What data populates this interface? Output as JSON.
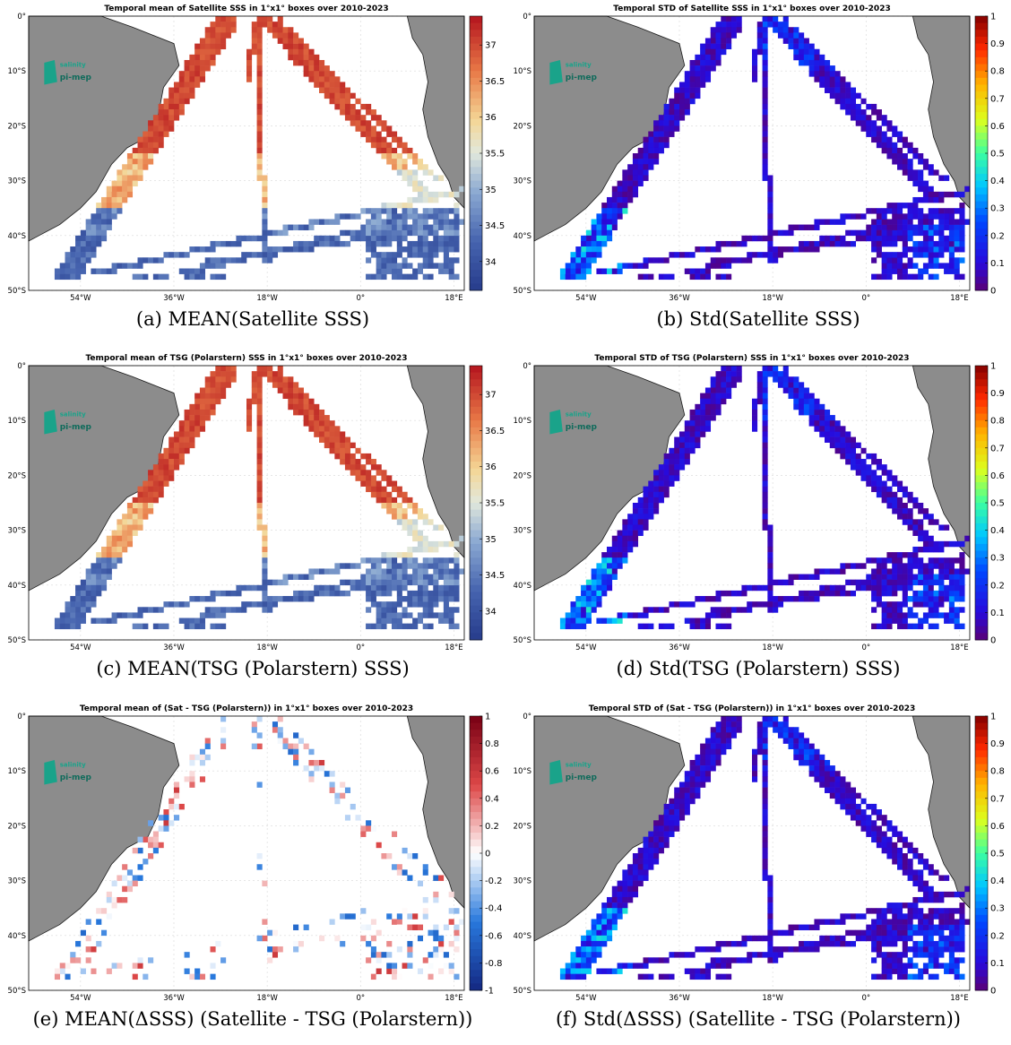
{
  "colors": {
    "land": "#8c8c8c",
    "coast": "#1a1a1a",
    "grid": "#d8d8d8",
    "logo": "#1aa38a",
    "logo_dark": "#0f6b5b"
  },
  "logo": {
    "line1": "salinity",
    "line2": "pi-mep"
  },
  "axes": {
    "xticks": [
      "54°W",
      "36°W",
      "18°W",
      "0°",
      "18°E"
    ],
    "yticks": [
      "0°",
      "10°S",
      "20°S",
      "30°S",
      "40°S",
      "50°S"
    ],
    "lon_range": [
      -64,
      20
    ],
    "lat_range": [
      -50,
      0
    ]
  },
  "panels": [
    {
      "id": "a",
      "title": "Temporal mean of Satellite SSS in 1°x1° boxes over 2010-2023",
      "caption": "(a) MEAN(Satellite SSS)",
      "kind": "mean_sss",
      "colormap": "sss",
      "clim": [
        33.6,
        37.4
      ],
      "cbar_ticks": [
        "37",
        "36.5",
        "36",
        "35.5",
        "35",
        "34.5",
        "34"
      ]
    },
    {
      "id": "b",
      "title": "Temporal STD of Satellite SSS in 1°x1° boxes over 2010-2023",
      "caption": "(b) Std(Satellite SSS)",
      "kind": "std",
      "colormap": "jet",
      "clim": [
        0,
        1
      ],
      "cbar_ticks": [
        "1",
        "0.9",
        "0.8",
        "0.7",
        "0.6",
        "0.5",
        "0.4",
        "0.3",
        "0.2",
        "0.1",
        "0"
      ]
    },
    {
      "id": "c",
      "title": "Temporal mean of TSG (Polarstern) SSS in 1°x1° boxes over 2010-2023",
      "caption": "(c) MEAN(TSG (Polarstern) SSS)",
      "kind": "mean_sss",
      "colormap": "sss",
      "clim": [
        33.6,
        37.4
      ],
      "cbar_ticks": [
        "37",
        "36.5",
        "36",
        "35.5",
        "35",
        "34.5",
        "34"
      ]
    },
    {
      "id": "d",
      "title": "Temporal STD of TSG (Polarstern) SSS in 1°x1° boxes over 2010-2023",
      "caption": "(d) Std(TSG (Polarstern) SSS)",
      "kind": "std",
      "colormap": "jet",
      "clim": [
        0,
        1
      ],
      "cbar_ticks": [
        "1",
        "0.9",
        "0.8",
        "0.7",
        "0.6",
        "0.5",
        "0.4",
        "0.3",
        "0.2",
        "0.1",
        "0"
      ]
    },
    {
      "id": "e",
      "title": "Temporal mean of (Sat - TSG (Polarstern)) in 1°x1° boxes over 2010-2023",
      "caption": "(e) MEAN(ΔSSS) (Satellite - TSG (Polarstern))",
      "kind": "diff",
      "colormap": "div",
      "clim": [
        -1,
        1
      ],
      "cbar_ticks": [
        "1",
        "0.8",
        "0.6",
        "0.4",
        "0.2",
        "0",
        "-0.2",
        "-0.4",
        "-0.6",
        "-0.8",
        "-1"
      ]
    },
    {
      "id": "f",
      "title": "Temporal STD of (Sat - TSG (Polarstern)) in 1°x1° boxes over 2010-2023",
      "caption": "(f) Std(ΔSSS) (Satellite - TSG (Polarstern))",
      "kind": "std",
      "colormap": "jet",
      "clim": [
        0,
        1
      ],
      "cbar_ticks": [
        "1",
        "0.9",
        "0.8",
        "0.7",
        "0.6",
        "0.5",
        "0.4",
        "0.3",
        "0.2",
        "0.1",
        "0"
      ]
    }
  ]
}
